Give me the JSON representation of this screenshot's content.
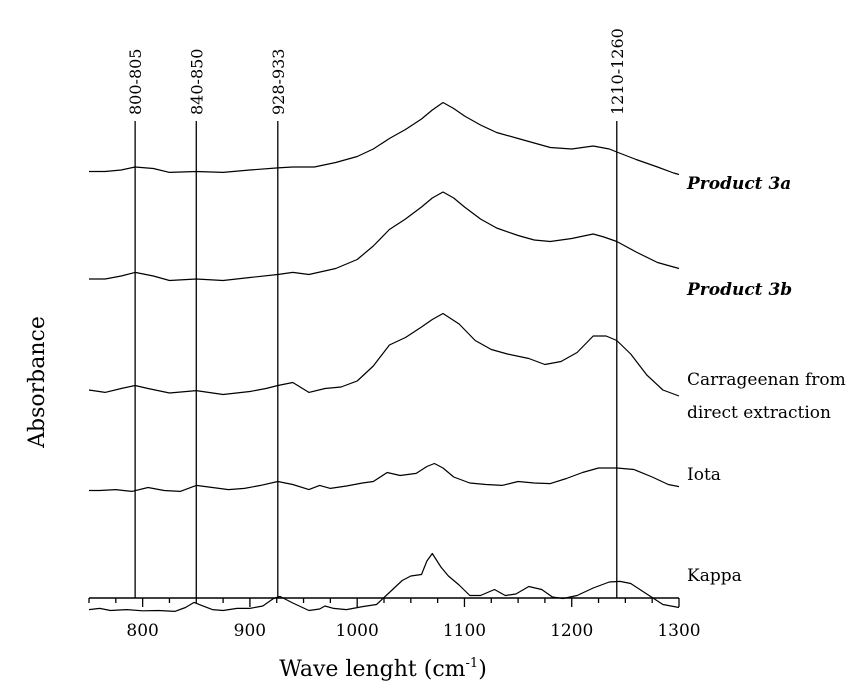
{
  "chart_data": {
    "type": "line",
    "title": "",
    "xlabel": "Wave lenght (cm",
    "xlabel_sup": "-1",
    "xlabel_close": ")",
    "ylabel": "Absorbance",
    "xlim": [
      750,
      1300
    ],
    "x_ticks": [
      800,
      900,
      1000,
      1100,
      1200,
      1300
    ],
    "x_tick_labels": [
      "800",
      "900",
      "1000",
      "1100",
      "1200",
      "1300"
    ],
    "grid": false,
    "legend": "none",
    "line_color": "#000000",
    "bands": [
      {
        "label": "800-805",
        "x": 793
      },
      {
        "label": "840-850",
        "x": 850
      },
      {
        "label": "928-933",
        "x": 926
      },
      {
        "label": "1210-1260",
        "x": 1242
      }
    ],
    "series": [
      {
        "name": "Product 3a",
        "emphasis": true,
        "points": [
          [
            750,
            1.45
          ],
          [
            765,
            1.45
          ],
          [
            780,
            1.5
          ],
          [
            793,
            1.6
          ],
          [
            810,
            1.55
          ],
          [
            825,
            1.42
          ],
          [
            850,
            1.45
          ],
          [
            875,
            1.42
          ],
          [
            900,
            1.5
          ],
          [
            926,
            1.57
          ],
          [
            940,
            1.6
          ],
          [
            960,
            1.6
          ],
          [
            980,
            1.75
          ],
          [
            1000,
            1.95
          ],
          [
            1015,
            2.2
          ],
          [
            1030,
            2.55
          ],
          [
            1045,
            2.85
          ],
          [
            1060,
            3.2
          ],
          [
            1070,
            3.5
          ],
          [
            1080,
            3.75
          ],
          [
            1090,
            3.55
          ],
          [
            1100,
            3.3
          ],
          [
            1115,
            3.0
          ],
          [
            1130,
            2.75
          ],
          [
            1150,
            2.55
          ],
          [
            1165,
            2.4
          ],
          [
            1180,
            2.25
          ],
          [
            1200,
            2.2
          ],
          [
            1220,
            2.3
          ],
          [
            1235,
            2.2
          ],
          [
            1242,
            2.1
          ],
          [
            1260,
            1.85
          ],
          [
            1280,
            1.6
          ],
          [
            1295,
            1.4
          ],
          [
            1300,
            1.35
          ]
        ]
      },
      {
        "name": "Product 3b",
        "emphasis": true,
        "points": [
          [
            750,
            1.1
          ],
          [
            765,
            1.1
          ],
          [
            780,
            1.2
          ],
          [
            793,
            1.32
          ],
          [
            810,
            1.2
          ],
          [
            825,
            1.05
          ],
          [
            850,
            1.1
          ],
          [
            875,
            1.05
          ],
          [
            900,
            1.15
          ],
          [
            926,
            1.25
          ],
          [
            940,
            1.32
          ],
          [
            955,
            1.25
          ],
          [
            980,
            1.45
          ],
          [
            1000,
            1.75
          ],
          [
            1015,
            2.2
          ],
          [
            1030,
            2.75
          ],
          [
            1045,
            3.1
          ],
          [
            1060,
            3.5
          ],
          [
            1070,
            3.8
          ],
          [
            1080,
            4.0
          ],
          [
            1090,
            3.8
          ],
          [
            1100,
            3.5
          ],
          [
            1115,
            3.1
          ],
          [
            1130,
            2.8
          ],
          [
            1150,
            2.55
          ],
          [
            1165,
            2.4
          ],
          [
            1180,
            2.35
          ],
          [
            1200,
            2.45
          ],
          [
            1220,
            2.6
          ],
          [
            1230,
            2.5
          ],
          [
            1242,
            2.35
          ],
          [
            1260,
            2.0
          ],
          [
            1280,
            1.65
          ],
          [
            1295,
            1.5
          ],
          [
            1300,
            1.45
          ]
        ]
      },
      {
        "name": "Carrageenan from direct extraction",
        "emphasis": false,
        "points": [
          [
            750,
            1.0
          ],
          [
            765,
            0.92
          ],
          [
            780,
            1.05
          ],
          [
            793,
            1.15
          ],
          [
            805,
            1.05
          ],
          [
            825,
            0.9
          ],
          [
            850,
            0.98
          ],
          [
            875,
            0.85
          ],
          [
            900,
            0.95
          ],
          [
            915,
            1.05
          ],
          [
            926,
            1.15
          ],
          [
            940,
            1.25
          ],
          [
            955,
            0.92
          ],
          [
            970,
            1.05
          ],
          [
            985,
            1.1
          ],
          [
            1000,
            1.3
          ],
          [
            1015,
            1.8
          ],
          [
            1030,
            2.5
          ],
          [
            1045,
            2.75
          ],
          [
            1060,
            3.1
          ],
          [
            1070,
            3.35
          ],
          [
            1080,
            3.55
          ],
          [
            1095,
            3.2
          ],
          [
            1110,
            2.65
          ],
          [
            1125,
            2.35
          ],
          [
            1140,
            2.2
          ],
          [
            1160,
            2.05
          ],
          [
            1175,
            1.85
          ],
          [
            1190,
            1.95
          ],
          [
            1205,
            2.25
          ],
          [
            1220,
            2.8
          ],
          [
            1232,
            2.8
          ],
          [
            1242,
            2.65
          ],
          [
            1255,
            2.2
          ],
          [
            1270,
            1.5
          ],
          [
            1285,
            1.0
          ],
          [
            1300,
            0.8
          ]
        ]
      },
      {
        "name": "Iota",
        "emphasis": false,
        "points": [
          [
            750,
            0.75
          ],
          [
            760,
            0.75
          ],
          [
            775,
            0.78
          ],
          [
            790,
            0.72
          ],
          [
            805,
            0.85
          ],
          [
            820,
            0.75
          ],
          [
            835,
            0.72
          ],
          [
            850,
            0.92
          ],
          [
            865,
            0.85
          ],
          [
            880,
            0.78
          ],
          [
            895,
            0.82
          ],
          [
            910,
            0.92
          ],
          [
            926,
            1.05
          ],
          [
            940,
            0.95
          ],
          [
            955,
            0.78
          ],
          [
            965,
            0.92
          ],
          [
            975,
            0.82
          ],
          [
            990,
            0.9
          ],
          [
            1005,
            1.0
          ],
          [
            1015,
            1.05
          ],
          [
            1028,
            1.35
          ],
          [
            1040,
            1.25
          ],
          [
            1055,
            1.32
          ],
          [
            1065,
            1.55
          ],
          [
            1072,
            1.65
          ],
          [
            1080,
            1.5
          ],
          [
            1090,
            1.2
          ],
          [
            1105,
            1.0
          ],
          [
            1120,
            0.95
          ],
          [
            1135,
            0.92
          ],
          [
            1150,
            1.05
          ],
          [
            1165,
            1.0
          ],
          [
            1180,
            0.98
          ],
          [
            1195,
            1.15
          ],
          [
            1210,
            1.35
          ],
          [
            1225,
            1.5
          ],
          [
            1242,
            1.5
          ],
          [
            1258,
            1.45
          ],
          [
            1275,
            1.2
          ],
          [
            1290,
            0.95
          ],
          [
            1300,
            0.88
          ]
        ]
      },
      {
        "name": "Kappa",
        "emphasis": false,
        "points": [
          [
            750,
            0.08
          ],
          [
            760,
            0.12
          ],
          [
            770,
            0.05
          ],
          [
            785,
            0.08
          ],
          [
            800,
            0.04
          ],
          [
            815,
            0.05
          ],
          [
            830,
            0.02
          ],
          [
            840,
            0.15
          ],
          [
            848,
            0.32
          ],
          [
            855,
            0.22
          ],
          [
            865,
            0.08
          ],
          [
            875,
            0.05
          ],
          [
            888,
            0.12
          ],
          [
            900,
            0.12
          ],
          [
            912,
            0.2
          ],
          [
            922,
            0.45
          ],
          [
            928,
            0.52
          ],
          [
            940,
            0.3
          ],
          [
            955,
            0.05
          ],
          [
            965,
            0.1
          ],
          [
            970,
            0.2
          ],
          [
            978,
            0.12
          ],
          [
            990,
            0.08
          ],
          [
            1005,
            0.18
          ],
          [
            1018,
            0.25
          ],
          [
            1030,
            0.65
          ],
          [
            1042,
            1.05
          ],
          [
            1050,
            1.2
          ],
          [
            1060,
            1.25
          ],
          [
            1065,
            1.7
          ],
          [
            1070,
            1.95
          ],
          [
            1078,
            1.5
          ],
          [
            1085,
            1.2
          ],
          [
            1095,
            0.9
          ],
          [
            1105,
            0.55
          ],
          [
            1115,
            0.55
          ],
          [
            1128,
            0.75
          ],
          [
            1138,
            0.55
          ],
          [
            1148,
            0.6
          ],
          [
            1160,
            0.85
          ],
          [
            1172,
            0.75
          ],
          [
            1182,
            0.5
          ],
          [
            1192,
            0.45
          ],
          [
            1205,
            0.55
          ],
          [
            1220,
            0.8
          ],
          [
            1235,
            1.0
          ],
          [
            1245,
            1.02
          ],
          [
            1255,
            0.95
          ],
          [
            1270,
            0.6
          ],
          [
            1285,
            0.25
          ],
          [
            1300,
            0.15
          ]
        ]
      }
    ],
    "series_labels": [
      {
        "lines": [
          "Product 3a"
        ],
        "emphasis": true
      },
      {
        "lines": [
          "Product 3b"
        ],
        "emphasis": true
      },
      {
        "lines": [
          "Carrageenan from",
          "direct extraction"
        ],
        "emphasis": false
      },
      {
        "lines": [
          "Iota"
        ],
        "emphasis": false
      },
      {
        "lines": [
          "Kappa"
        ],
        "emphasis": false
      }
    ]
  }
}
